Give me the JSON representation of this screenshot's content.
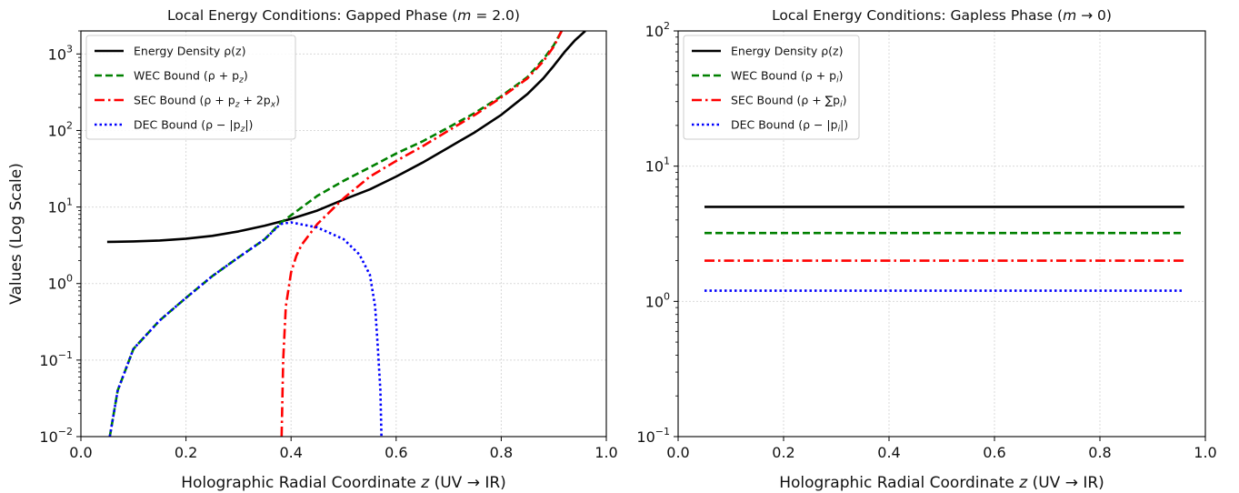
{
  "chart_data": [
    {
      "type": "line",
      "title": "Local Energy Conditions: Gapped Phase (m = 2.0)",
      "xlabel": "Holographic Radial Coordinate z (UV → IR)",
      "ylabel": "Values (Log Scale)",
      "xlim": [
        0.0,
        1.0
      ],
      "ylim": [
        0.01,
        2000
      ],
      "yscale": "log",
      "grid": true,
      "legend_position": "top-left",
      "x_ticks": [
        "0.0",
        "0.2",
        "0.4",
        "0.6",
        "0.8",
        "1.0"
      ],
      "y_ticks": [
        {
          "base": "10",
          "exp": "−2"
        },
        {
          "base": "10",
          "exp": "−1"
        },
        {
          "base": "10",
          "exp": "0"
        },
        {
          "base": "10",
          "exp": "1"
        },
        {
          "base": "10",
          "exp": "2"
        },
        {
          "base": "10",
          "exp": "3"
        }
      ],
      "series": [
        {
          "name": "Energy Density ρ(z)",
          "color": "#000000",
          "style": "solid",
          "x": [
            0.05,
            0.1,
            0.15,
            0.2,
            0.25,
            0.3,
            0.35,
            0.4,
            0.45,
            0.5,
            0.55,
            0.6,
            0.65,
            0.7,
            0.75,
            0.8,
            0.85,
            0.88,
            0.9,
            0.92,
            0.94,
            0.96
          ],
          "y": [
            3.5,
            3.55,
            3.65,
            3.85,
            4.2,
            4.8,
            5.7,
            7.0,
            9.0,
            12.5,
            17,
            25,
            38,
            60,
            95,
            160,
            300,
            480,
            700,
            1050,
            1500,
            2000
          ]
        },
        {
          "name": "WEC Bound (ρ + p_z)",
          "color": "#008000",
          "style": "dashed",
          "x": [
            0.055,
            0.07,
            0.1,
            0.15,
            0.2,
            0.25,
            0.3,
            0.35,
            0.38,
            0.4,
            0.45,
            0.5,
            0.55,
            0.6,
            0.65,
            0.7,
            0.75,
            0.8,
            0.85,
            0.88,
            0.9,
            0.915
          ],
          "y": [
            0.01,
            0.04,
            0.14,
            0.33,
            0.65,
            1.25,
            2.2,
            3.8,
            6.2,
            7.8,
            14,
            22,
            33,
            50,
            72,
            110,
            170,
            280,
            500,
            850,
            1300,
            2000
          ]
        },
        {
          "name": "SEC Bound (ρ + p_z + 2p_x)",
          "color": "#ff0000",
          "style": "dashdot",
          "x": [
            0.382,
            0.385,
            0.39,
            0.4,
            0.41,
            0.42,
            0.45,
            0.5,
            0.55,
            0.6,
            0.65,
            0.7,
            0.75,
            0.8,
            0.85,
            0.88,
            0.9,
            0.915
          ],
          "y": [
            0.01,
            0.1,
            0.5,
            1.4,
            2.3,
            3.2,
            6.0,
            13,
            25,
            40,
            62,
            100,
            160,
            270,
            480,
            800,
            1250,
            2000
          ]
        },
        {
          "name": "DEC Bound (ρ − |p_z|)",
          "color": "#0000ff",
          "style": "dotted",
          "x": [
            0.055,
            0.07,
            0.1,
            0.15,
            0.2,
            0.25,
            0.3,
            0.35,
            0.38,
            0.4,
            0.45,
            0.5,
            0.53,
            0.55,
            0.56,
            0.565,
            0.57,
            0.572
          ],
          "y": [
            0.01,
            0.04,
            0.14,
            0.33,
            0.65,
            1.25,
            2.2,
            3.8,
            6.0,
            6.3,
            5.4,
            3.8,
            2.4,
            1.3,
            0.5,
            0.15,
            0.04,
            0.01
          ]
        }
      ]
    },
    {
      "type": "line",
      "title": "Local Energy Conditions: Gapless Phase (m → 0)",
      "xlabel": "Holographic Radial Coordinate z (UV → IR)",
      "ylabel": "",
      "xlim": [
        0.0,
        1.0
      ],
      "ylim": [
        0.1,
        100
      ],
      "yscale": "log",
      "grid": true,
      "legend_position": "top-left",
      "x_ticks": [
        "0.0",
        "0.2",
        "0.4",
        "0.6",
        "0.8",
        "1.0"
      ],
      "y_ticks": [
        {
          "base": "10",
          "exp": "−1"
        },
        {
          "base": "10",
          "exp": "0"
        },
        {
          "base": "10",
          "exp": "1"
        },
        {
          "base": "10",
          "exp": "2"
        }
      ],
      "series": [
        {
          "name": "Energy Density ρ(z)",
          "color": "#000000",
          "style": "solid",
          "x": [
            0.05,
            0.96
          ],
          "y": [
            5.0,
            5.0
          ]
        },
        {
          "name": "WEC Bound (ρ + p_i)",
          "color": "#008000",
          "style": "dashed",
          "x": [
            0.05,
            0.96
          ],
          "y": [
            3.2,
            3.2
          ]
        },
        {
          "name": "SEC Bound (ρ + ∑p_i)",
          "color": "#ff0000",
          "style": "dashdot",
          "x": [
            0.05,
            0.96
          ],
          "y": [
            2.0,
            2.0
          ]
        },
        {
          "name": "DEC Bound (ρ − |p_i|)",
          "color": "#0000ff",
          "style": "dotted",
          "x": [
            0.05,
            0.96
          ],
          "y": [
            1.2,
            1.2
          ]
        }
      ]
    }
  ],
  "legend_entries": [
    [
      {
        "text": "Energy Density ρ(z)"
      },
      {
        "text": "WEC Bound (ρ + p",
        "sub": "z",
        "tail": ")"
      },
      {
        "text": "SEC Bound (ρ + p",
        "sub": "z",
        "tail": " + 2p",
        "sub2": "x",
        "tail2": ")"
      },
      {
        "text": "DEC Bound (ρ − |p",
        "sub": "z",
        "tail": "|)"
      }
    ],
    [
      {
        "text": "Energy Density ρ(z)"
      },
      {
        "text": "WEC Bound (ρ + p",
        "sub": "i",
        "tail": ")"
      },
      {
        "text": "SEC Bound (ρ + ∑p",
        "sub": "i",
        "tail": ")"
      },
      {
        "text": "DEC Bound (ρ − |p",
        "sub": "i",
        "tail": "|)"
      }
    ]
  ]
}
